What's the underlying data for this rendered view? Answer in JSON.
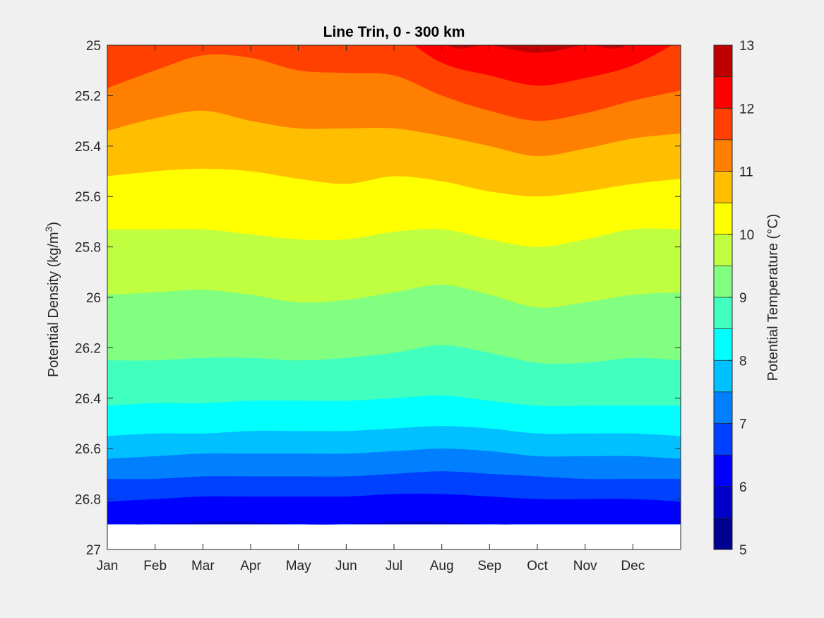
{
  "chart_data": {
    "type": "contourf",
    "title": "Line Trin, 0 - 300 km",
    "ylabel": "Potential Density (kg/m",
    "ylabel_sup": "3",
    "ylabel_end": ")",
    "colorbar_label": "Potential Temperature (°C)",
    "x_ticks": [
      "Jan",
      "Feb",
      "Mar",
      "Apr",
      "May",
      "Jun",
      "Jul",
      "Aug",
      "Sep",
      "Oct",
      "Nov",
      "Dec"
    ],
    "x_tick_months": [
      0,
      1,
      2,
      3,
      4,
      5,
      6,
      7,
      8,
      9,
      10,
      11
    ],
    "xlim": [
      0,
      12
    ],
    "y_ticks": [
      "25",
      "25.2",
      "25.4",
      "25.6",
      "25.8",
      "26",
      "26.2",
      "26.4",
      "26.6",
      "26.8",
      "27"
    ],
    "y_tick_values": [
      25.0,
      25.2,
      25.4,
      25.6,
      25.8,
      26.0,
      26.2,
      26.4,
      26.6,
      26.8,
      27.0
    ],
    "ylim": [
      25.0,
      27.0
    ],
    "y_reversed": true,
    "colorbar_ticks": [
      "5",
      "6",
      "7",
      "8",
      "9",
      "10",
      "11",
      "12",
      "13"
    ],
    "colorbar_tick_values": [
      5,
      6,
      7,
      8,
      9,
      10,
      11,
      12,
      13
    ],
    "clim": [
      5,
      13
    ],
    "level_step": 0.5,
    "level_colors": [
      "#00008f",
      "#0000c8",
      "#0000ff",
      "#0040ff",
      "#0080ff",
      "#00c0ff",
      "#00ffff",
      "#40ffbf",
      "#80ff80",
      "#bfff40",
      "#ffff00",
      "#ffbf00",
      "#ff8000",
      "#ff4000",
      "#ff0000",
      "#bf0000"
    ],
    "no_data_below_density": 26.9,
    "isotherms": [
      {
        "temp": 12.5,
        "months": [
          0,
          1,
          2,
          3,
          4,
          5,
          6,
          7,
          8,
          9,
          10,
          11,
          12
        ],
        "density": [
          24.6,
          24.6,
          24.6,
          24.6,
          24.6,
          24.6,
          24.6,
          24.6,
          24.98,
          25.02,
          24.98,
          24.6,
          24.6
        ]
      },
      {
        "temp": 12.0,
        "months": [
          0,
          1,
          2,
          3,
          4,
          5,
          6,
          7,
          8,
          9,
          10,
          11,
          12
        ],
        "density": [
          24.6,
          24.6,
          24.6,
          24.6,
          24.6,
          24.6,
          24.6,
          24.98,
          25.0,
          25.03,
          25.0,
          24.98,
          24.6
        ]
      },
      {
        "temp": 11.5,
        "months": [
          0,
          1,
          2,
          3,
          4,
          5,
          6,
          7,
          8,
          9,
          10,
          11,
          12
        ],
        "density": [
          24.9,
          24.9,
          24.9,
          24.9,
          24.9,
          24.9,
          24.95,
          25.07,
          25.12,
          25.16,
          25.13,
          25.08,
          24.98
        ]
      },
      {
        "temp": 11.0,
        "months": [
          0,
          1,
          2,
          3,
          4,
          5,
          6,
          7,
          8,
          9,
          10,
          11,
          12
        ],
        "density": [
          25.17,
          25.1,
          25.04,
          25.05,
          25.1,
          25.11,
          25.12,
          25.2,
          25.26,
          25.3,
          25.27,
          25.22,
          25.18
        ]
      },
      {
        "temp": 10.5,
        "months": [
          0,
          1,
          2,
          3,
          4,
          5,
          6,
          7,
          8,
          9,
          10,
          11,
          12
        ],
        "density": [
          25.34,
          25.29,
          25.26,
          25.3,
          25.33,
          25.33,
          25.33,
          25.36,
          25.4,
          25.44,
          25.41,
          25.37,
          25.35
        ]
      },
      {
        "temp": 10.0,
        "months": [
          0,
          1,
          2,
          3,
          4,
          5,
          6,
          7,
          8,
          9,
          10,
          11,
          12
        ],
        "density": [
          25.52,
          25.5,
          25.49,
          25.5,
          25.53,
          25.55,
          25.52,
          25.54,
          25.58,
          25.6,
          25.58,
          25.55,
          25.53
        ]
      },
      {
        "temp": 9.5,
        "months": [
          0,
          1,
          2,
          3,
          4,
          5,
          6,
          7,
          8,
          9,
          10,
          11,
          12
        ],
        "density": [
          25.73,
          25.73,
          25.73,
          25.75,
          25.77,
          25.77,
          25.74,
          25.73,
          25.77,
          25.8,
          25.77,
          25.73,
          25.73
        ]
      },
      {
        "temp": 9.0,
        "months": [
          0,
          1,
          2,
          3,
          4,
          5,
          6,
          7,
          8,
          9,
          10,
          11,
          12
        ],
        "density": [
          25.99,
          25.98,
          25.97,
          25.99,
          26.02,
          26.01,
          25.98,
          25.95,
          25.99,
          26.04,
          26.02,
          25.99,
          25.98
        ]
      },
      {
        "temp": 8.5,
        "months": [
          0,
          1,
          2,
          3,
          4,
          5,
          6,
          7,
          8,
          9,
          10,
          11,
          12
        ],
        "density": [
          26.25,
          26.25,
          26.24,
          26.24,
          26.25,
          26.24,
          26.22,
          26.19,
          26.22,
          26.26,
          26.26,
          26.24,
          26.25
        ]
      },
      {
        "temp": 8.0,
        "months": [
          0,
          1,
          2,
          3,
          4,
          5,
          6,
          7,
          8,
          9,
          10,
          11,
          12
        ],
        "density": [
          26.43,
          26.42,
          26.42,
          26.41,
          26.41,
          26.41,
          26.4,
          26.39,
          26.41,
          26.43,
          26.43,
          26.43,
          26.43
        ]
      },
      {
        "temp": 7.5,
        "months": [
          0,
          1,
          2,
          3,
          4,
          5,
          6,
          7,
          8,
          9,
          10,
          11,
          12
        ],
        "density": [
          26.55,
          26.54,
          26.54,
          26.53,
          26.53,
          26.53,
          26.52,
          26.51,
          26.52,
          26.54,
          26.54,
          26.54,
          26.55
        ]
      },
      {
        "temp": 7.0,
        "months": [
          0,
          1,
          2,
          3,
          4,
          5,
          6,
          7,
          8,
          9,
          10,
          11,
          12
        ],
        "density": [
          26.64,
          26.63,
          26.62,
          26.62,
          26.62,
          26.62,
          26.61,
          26.6,
          26.61,
          26.63,
          26.63,
          26.63,
          26.64
        ]
      },
      {
        "temp": 6.5,
        "months": [
          0,
          1,
          2,
          3,
          4,
          5,
          6,
          7,
          8,
          9,
          10,
          11,
          12
        ],
        "density": [
          26.72,
          26.72,
          26.71,
          26.71,
          26.71,
          26.71,
          26.7,
          26.69,
          26.7,
          26.71,
          26.72,
          26.72,
          26.72
        ]
      },
      {
        "temp": 6.0,
        "months": [
          0,
          1,
          2,
          3,
          4,
          5,
          6,
          7,
          8,
          9,
          10,
          11,
          12
        ],
        "density": [
          26.81,
          26.8,
          26.79,
          26.79,
          26.79,
          26.79,
          26.78,
          26.78,
          26.79,
          26.8,
          26.8,
          26.8,
          26.81
        ]
      },
      {
        "temp": 5.5,
        "months": [
          0,
          1,
          2,
          3,
          4,
          5,
          6,
          7,
          8,
          9,
          10,
          11,
          12
        ],
        "density": [
          26.9,
          26.9,
          26.89,
          26.89,
          26.9,
          26.9,
          26.89,
          26.89,
          26.9,
          26.9,
          26.9,
          26.9,
          26.9
        ]
      }
    ]
  }
}
